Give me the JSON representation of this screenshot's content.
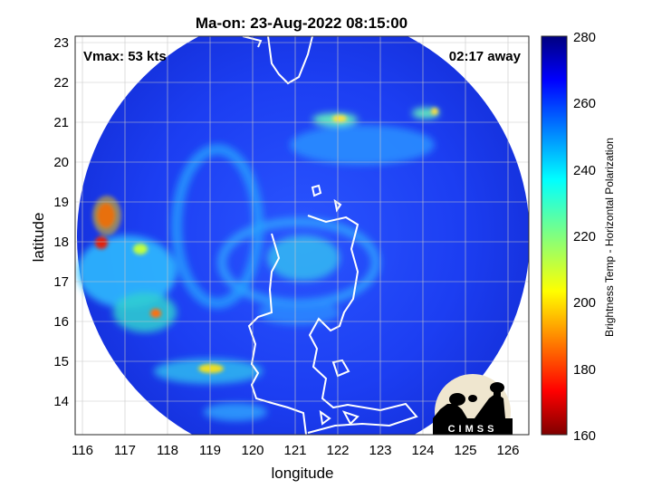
{
  "title": "Ma-on: 23-Aug-2022 08:15:00",
  "vmax_label": "Vmax: 53 kts",
  "time_away_label": "02:17 away",
  "xlabel": "longitude",
  "ylabel": "latitude",
  "x_ticks": [
    "116",
    "117",
    "118",
    "119",
    "120",
    "121",
    "122",
    "123",
    "124",
    "125",
    "126"
  ],
  "y_ticks": [
    "23",
    "22",
    "21",
    "20",
    "19",
    "18",
    "17",
    "16",
    "15",
    "14"
  ],
  "colorbar": {
    "label": "Brightness Temp - Horizontal Polarization",
    "ticks": [
      "280",
      "260",
      "240",
      "220",
      "200",
      "180",
      "160"
    ],
    "range": [
      160,
      280
    ],
    "colormap": "jet"
  },
  "logo_text": "CIMSS",
  "colors": {
    "background_swath": "#1a3cf0",
    "coastline": "#ffffff",
    "grid": "#c8c8c8"
  }
}
